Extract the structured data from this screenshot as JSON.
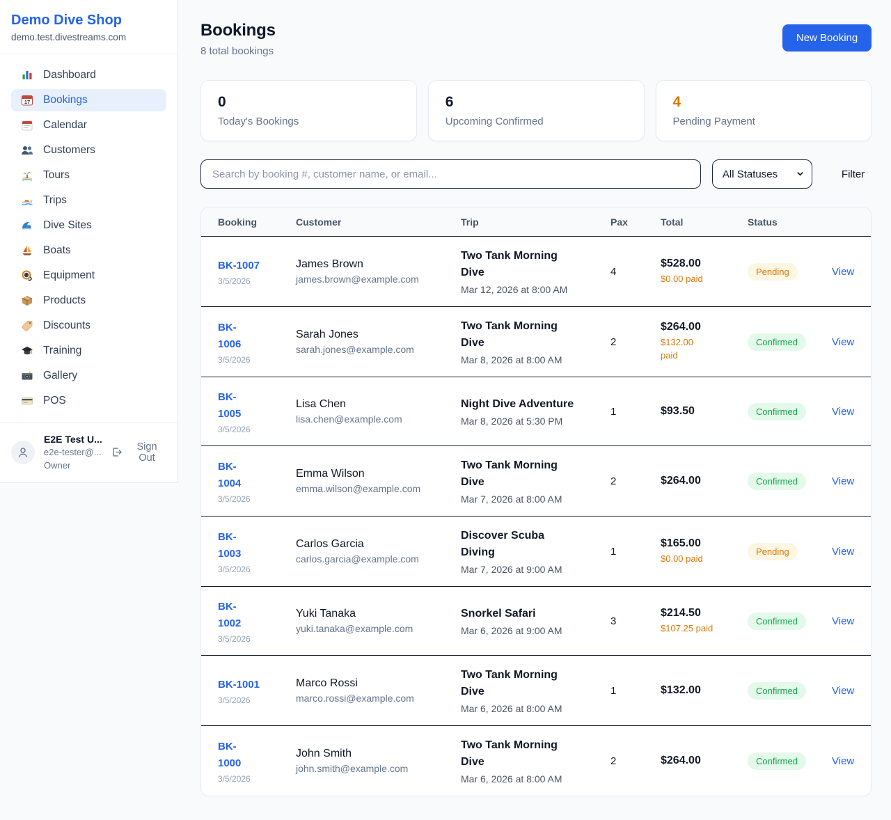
{
  "app": {
    "name": "Demo Dive Shop",
    "domain": "demo.test.divestreams.com"
  },
  "colors": {
    "accent": "#2563eb",
    "pending_text": "#d97706",
    "pending_bg": "#fdf6e3",
    "confirmed_text": "#16a34a",
    "confirmed_bg": "#e3f9ea",
    "paid_text": "#d97706",
    "highlight_number": "#d97706"
  },
  "sidebar": {
    "items": [
      {
        "label": "Dashboard",
        "icon": "dashboard-icon",
        "active": false
      },
      {
        "label": "Bookings",
        "icon": "bookings-icon",
        "active": true
      },
      {
        "label": "Calendar",
        "icon": "calendar-icon",
        "active": false
      },
      {
        "label": "Customers",
        "icon": "customers-icon",
        "active": false
      },
      {
        "label": "Tours",
        "icon": "tours-icon",
        "active": false
      },
      {
        "label": "Trips",
        "icon": "trips-icon",
        "active": false
      },
      {
        "label": "Dive Sites",
        "icon": "dive-sites-icon",
        "active": false
      },
      {
        "label": "Boats",
        "icon": "boats-icon",
        "active": false
      },
      {
        "label": "Equipment",
        "icon": "equipment-icon",
        "active": false
      },
      {
        "label": "Products",
        "icon": "products-icon",
        "active": false
      },
      {
        "label": "Discounts",
        "icon": "discounts-icon",
        "active": false
      },
      {
        "label": "Training",
        "icon": "training-icon",
        "active": false
      },
      {
        "label": "Gallery",
        "icon": "gallery-icon",
        "active": false
      },
      {
        "label": "POS",
        "icon": "pos-icon",
        "active": false
      }
    ],
    "user": {
      "name": "E2E Test U...",
      "email": "e2e-tester@...",
      "role": "Owner",
      "sign_out_label": "Sign Out"
    }
  },
  "header": {
    "title": "Bookings",
    "subtitle": "8 total bookings",
    "new_booking_label": "New Booking"
  },
  "stats": {
    "cards": [
      {
        "value": "0",
        "label": "Today's Bookings",
        "highlight": false
      },
      {
        "value": "6",
        "label": "Upcoming Confirmed",
        "highlight": false
      },
      {
        "value": "4",
        "label": "Pending Payment",
        "highlight": true
      }
    ]
  },
  "filters": {
    "search_placeholder": "Search by booking #, customer name, or email...",
    "status_selected": "All Statuses",
    "filter_label": "Filter"
  },
  "table": {
    "columns": [
      "Booking",
      "Customer",
      "Trip",
      "Pax",
      "Total",
      "Status",
      ""
    ],
    "view_label": "View",
    "rows": [
      {
        "booking_number": "BK-1007",
        "booking_date": "3/5/2026",
        "customer_name": "James Brown",
        "customer_email": "james.brown@example.com",
        "trip_name": "Two Tank Morning\nDive",
        "trip_datetime": "Mar 12, 2026 at 8:00 AM",
        "pax": "4",
        "total": "$528.00",
        "paid": "$0.00 paid",
        "status": "Pending"
      },
      {
        "booking_number": "BK-\n1006",
        "booking_date": "3/5/2026",
        "customer_name": "Sarah Jones",
        "customer_email": "sarah.jones@example.com",
        "trip_name": "Two Tank Morning\nDive",
        "trip_datetime": "Mar 8, 2026 at 8:00 AM",
        "pax": "2",
        "total": "$264.00",
        "paid": "$132.00\npaid",
        "status": "Confirmed"
      },
      {
        "booking_number": "BK-\n1005",
        "booking_date": "3/5/2026",
        "customer_name": "Lisa Chen",
        "customer_email": "lisa.chen@example.com",
        "trip_name": "Night Dive Adventure",
        "trip_datetime": "Mar 8, 2026 at 5:30 PM",
        "pax": "1",
        "total": "$93.50",
        "paid": "",
        "status": "Confirmed"
      },
      {
        "booking_number": "BK-\n1004",
        "booking_date": "3/5/2026",
        "customer_name": "Emma Wilson",
        "customer_email": "emma.wilson@example.com",
        "trip_name": "Two Tank Morning\nDive",
        "trip_datetime": "Mar 7, 2026 at 8:00 AM",
        "pax": "2",
        "total": "$264.00",
        "paid": "",
        "status": "Confirmed"
      },
      {
        "booking_number": "BK-\n1003",
        "booking_date": "3/5/2026",
        "customer_name": "Carlos Garcia",
        "customer_email": "carlos.garcia@example.com",
        "trip_name": "Discover Scuba\nDiving",
        "trip_datetime": "Mar 7, 2026 at 9:00 AM",
        "pax": "1",
        "total": "$165.00",
        "paid": "$0.00 paid",
        "status": "Pending"
      },
      {
        "booking_number": "BK-\n1002",
        "booking_date": "3/5/2026",
        "customer_name": "Yuki Tanaka",
        "customer_email": "yuki.tanaka@example.com",
        "trip_name": "Snorkel Safari",
        "trip_datetime": "Mar 6, 2026 at 9:00 AM",
        "pax": "3",
        "total": "$214.50",
        "paid": "$107.25 paid",
        "status": "Confirmed"
      },
      {
        "booking_number": "BK-1001",
        "booking_date": "3/5/2026",
        "customer_name": "Marco Rossi",
        "customer_email": "marco.rossi@example.com",
        "trip_name": "Two Tank Morning\nDive",
        "trip_datetime": "Mar 6, 2026 at 8:00 AM",
        "pax": "1",
        "total": "$132.00",
        "paid": "",
        "status": "Confirmed"
      },
      {
        "booking_number": "BK-\n1000",
        "booking_date": "3/5/2026",
        "customer_name": "John Smith",
        "customer_email": "john.smith@example.com",
        "trip_name": "Two Tank Morning\nDive",
        "trip_datetime": "Mar 6, 2026 at 8:00 AM",
        "pax": "2",
        "total": "$264.00",
        "paid": "",
        "status": "Confirmed"
      }
    ]
  }
}
